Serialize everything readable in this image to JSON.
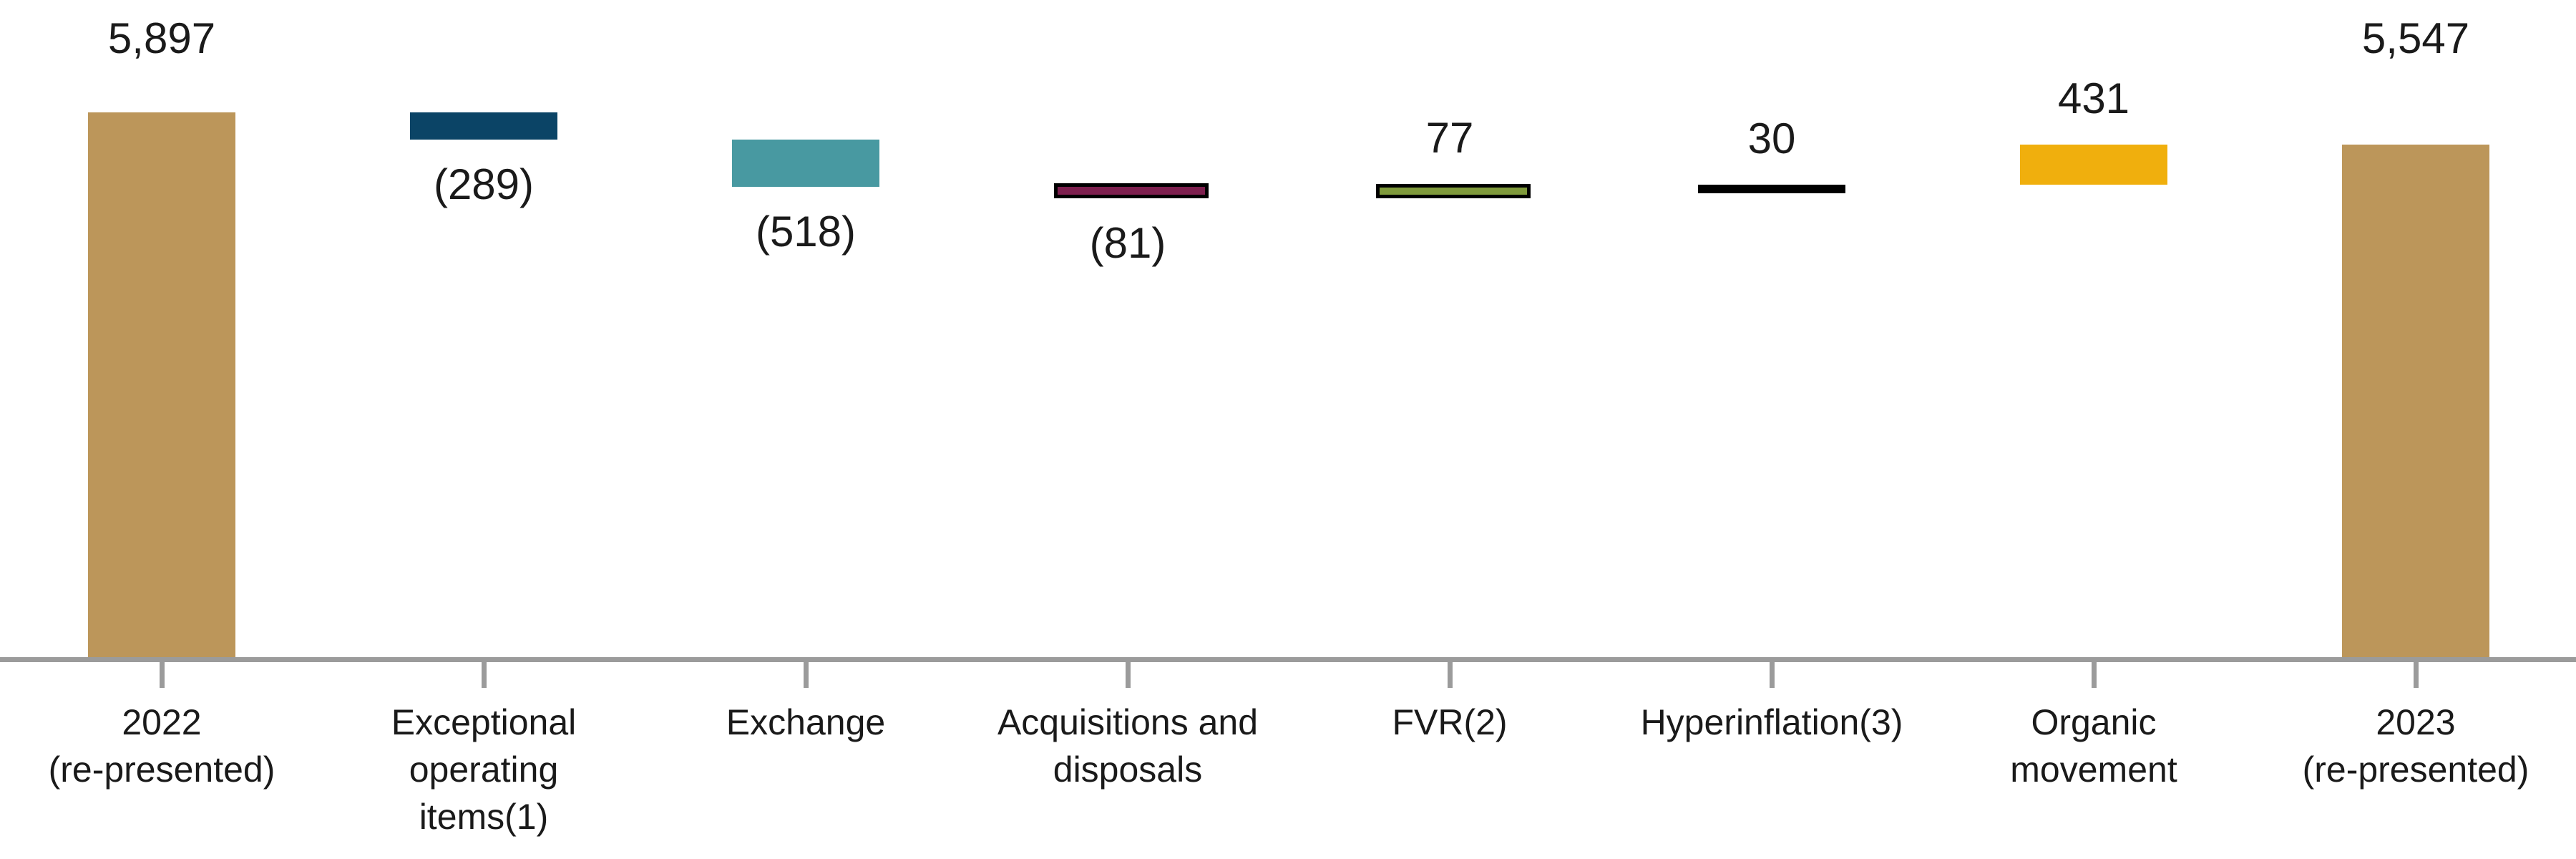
{
  "chart_data": {
    "type": "bar",
    "subtype": "waterfall",
    "title": "",
    "grid": false,
    "legend": false,
    "baseline": 0,
    "axis_color": "#9b9b9b",
    "text_color": "#1a1a1a",
    "categories": [
      "2022 (re-presented)",
      "Exceptional operating items(1)",
      "Exchange",
      "Acquisitions and disposals",
      "FVR(2)",
      "Hyperinflation(3)",
      "Organic movement",
      "2023 (re-presented)"
    ],
    "values": [
      5897,
      -289,
      -518,
      -81,
      77,
      30,
      431,
      5547
    ],
    "bars": [
      {
        "id": "2022-re-presented",
        "category": "2022\n(re-presented)",
        "value": 5897,
        "value_label": "5,897",
        "start": 0,
        "end": 5897,
        "color": "#bc965a",
        "border": false,
        "label_position": "above",
        "role": "total"
      },
      {
        "id": "exceptional-operating-items",
        "category": "Exceptional\noperating\nitems(1)",
        "value": -289,
        "value_label": "(289)",
        "start": 5897,
        "end": 5608,
        "color": "#0b4466",
        "border": false,
        "label_position": "below",
        "role": "decrease"
      },
      {
        "id": "exchange",
        "category": "Exchange",
        "value": -518,
        "value_label": "(518)",
        "start": 5608,
        "end": 5090,
        "color": "#4899a1",
        "border": false,
        "label_position": "below",
        "role": "decrease"
      },
      {
        "id": "acquisitions-and-disposals",
        "category": "Acquisitions and\ndisposals",
        "value": -81,
        "value_label": "(81)",
        "start": 5090,
        "end": 5009,
        "color": "#7d1f4e",
        "border": true,
        "border_color": "#000000",
        "label_position": "below",
        "role": "decrease"
      },
      {
        "id": "fvr",
        "category": "FVR(2)",
        "value": 77,
        "value_label": "77",
        "start": 5009,
        "end": 5086,
        "color": "#7f9a3b",
        "border": true,
        "border_color": "#000000",
        "label_position": "above",
        "role": "increase"
      },
      {
        "id": "hyperinflation",
        "category": "Hyperinflation(3)",
        "value": 30,
        "value_label": "30",
        "start": 5086,
        "end": 5116,
        "color": "#000000",
        "border": false,
        "label_position": "above",
        "role": "increase"
      },
      {
        "id": "organic-movement",
        "category": "Organic\nmovement",
        "value": 431,
        "value_label": "431",
        "start": 5116,
        "end": 5547,
        "color": "#f0af0d",
        "border": false,
        "label_position": "above",
        "role": "increase"
      },
      {
        "id": "2023-re-presented",
        "category": "2023\n(re-presented)",
        "value": 5547,
        "value_label": "5,547",
        "start": 0,
        "end": 5547,
        "color": "#bc965a",
        "border": false,
        "label_position": "above",
        "role": "total"
      }
    ]
  }
}
